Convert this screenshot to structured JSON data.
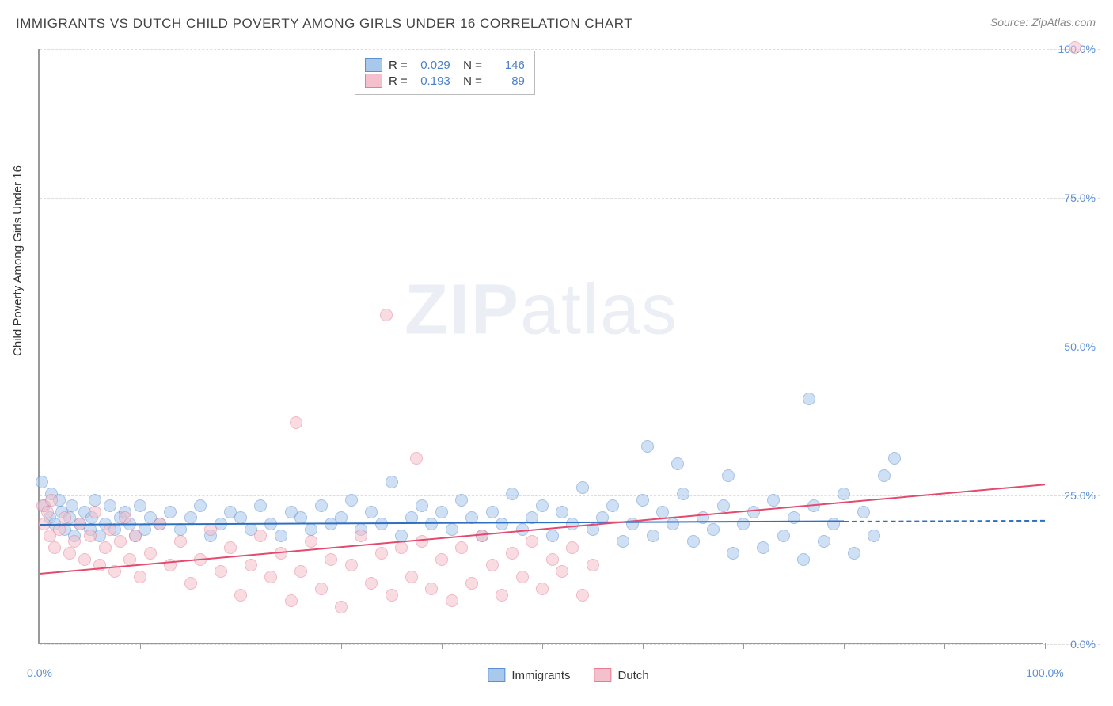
{
  "title": "IMMIGRANTS VS DUTCH CHILD POVERTY AMONG GIRLS UNDER 16 CORRELATION CHART",
  "source": "Source: ZipAtlas.com",
  "ylabel": "Child Poverty Among Girls Under 16",
  "watermark_bold": "ZIP",
  "watermark_rest": "atlas",
  "chart": {
    "type": "scatter",
    "xlim": [
      0,
      100
    ],
    "ylim": [
      0,
      100
    ],
    "grid_color": "#dddddd",
    "axis_color": "#999999",
    "background_color": "#ffffff",
    "ytick_step": 25,
    "ytick_labels": [
      "0.0%",
      "25.0%",
      "50.0%",
      "75.0%",
      "100.0%"
    ],
    "xtick_positions": [
      0,
      10,
      20,
      30,
      40,
      50,
      60,
      70,
      80,
      90,
      100
    ],
    "xtick_labels": {
      "0": "0.0%",
      "100": "100.0%"
    },
    "label_color": "#5b8fd6",
    "label_fontsize": 14,
    "marker_radius": 8,
    "marker_opacity": 0.55,
    "series": [
      {
        "name": "Immigrants",
        "color_fill": "#a8c8ec",
        "color_stroke": "#5b8fd6",
        "R": "0.029",
        "N": "146",
        "trend": {
          "y_start": 20.2,
          "y_end": 20.8,
          "x_start": 0,
          "x_end": 80,
          "dash_to": 100,
          "color": "#2f6fc0"
        },
        "points": [
          [
            0.2,
            27
          ],
          [
            0.5,
            23
          ],
          [
            1,
            21
          ],
          [
            1.2,
            25
          ],
          [
            1.5,
            20
          ],
          [
            2,
            24
          ],
          [
            2.2,
            22
          ],
          [
            2.5,
            19
          ],
          [
            3,
            21
          ],
          [
            3.2,
            23
          ],
          [
            3.5,
            18
          ],
          [
            4,
            20
          ],
          [
            4.5,
            22
          ],
          [
            5,
            19
          ],
          [
            5.2,
            21
          ],
          [
            5.5,
            24
          ],
          [
            6,
            18
          ],
          [
            6.5,
            20
          ],
          [
            7,
            23
          ],
          [
            7.5,
            19
          ],
          [
            8,
            21
          ],
          [
            8.5,
            22
          ],
          [
            9,
            20
          ],
          [
            9.5,
            18
          ],
          [
            10,
            23
          ],
          [
            10.5,
            19
          ],
          [
            11,
            21
          ],
          [
            12,
            20
          ],
          [
            13,
            22
          ],
          [
            14,
            19
          ],
          [
            15,
            21
          ],
          [
            16,
            23
          ],
          [
            17,
            18
          ],
          [
            18,
            20
          ],
          [
            19,
            22
          ],
          [
            20,
            21
          ],
          [
            21,
            19
          ],
          [
            22,
            23
          ],
          [
            23,
            20
          ],
          [
            24,
            18
          ],
          [
            25,
            22
          ],
          [
            26,
            21
          ],
          [
            27,
            19
          ],
          [
            28,
            23
          ],
          [
            29,
            20
          ],
          [
            30,
            21
          ],
          [
            31,
            24
          ],
          [
            32,
            19
          ],
          [
            33,
            22
          ],
          [
            34,
            20
          ],
          [
            35,
            27
          ],
          [
            36,
            18
          ],
          [
            37,
            21
          ],
          [
            38,
            23
          ],
          [
            39,
            20
          ],
          [
            40,
            22
          ],
          [
            41,
            19
          ],
          [
            42,
            24
          ],
          [
            43,
            21
          ],
          [
            44,
            18
          ],
          [
            45,
            22
          ],
          [
            46,
            20
          ],
          [
            47,
            25
          ],
          [
            48,
            19
          ],
          [
            49,
            21
          ],
          [
            50,
            23
          ],
          [
            51,
            18
          ],
          [
            52,
            22
          ],
          [
            53,
            20
          ],
          [
            54,
            26
          ],
          [
            55,
            19
          ],
          [
            56,
            21
          ],
          [
            57,
            23
          ],
          [
            58,
            17
          ],
          [
            59,
            20
          ],
          [
            60,
            24
          ],
          [
            60.5,
            33
          ],
          [
            61,
            18
          ],
          [
            62,
            22
          ],
          [
            63,
            20
          ],
          [
            63.5,
            30
          ],
          [
            64,
            25
          ],
          [
            65,
            17
          ],
          [
            66,
            21
          ],
          [
            67,
            19
          ],
          [
            68,
            23
          ],
          [
            68.5,
            28
          ],
          [
            69,
            15
          ],
          [
            70,
            20
          ],
          [
            71,
            22
          ],
          [
            72,
            16
          ],
          [
            73,
            24
          ],
          [
            74,
            18
          ],
          [
            75,
            21
          ],
          [
            76,
            14
          ],
          [
            76.5,
            41
          ],
          [
            77,
            23
          ],
          [
            78,
            17
          ],
          [
            79,
            20
          ],
          [
            80,
            25
          ],
          [
            81,
            15
          ],
          [
            82,
            22
          ],
          [
            83,
            18
          ],
          [
            84,
            28
          ],
          [
            85,
            31
          ]
        ]
      },
      {
        "name": "Dutch",
        "color_fill": "#f4c0cb",
        "color_stroke": "#e87c95",
        "R": "0.193",
        "N": "89",
        "trend": {
          "y_start": 12,
          "y_end": 27,
          "x_start": 0,
          "x_end": 100,
          "color": "#e24a6e"
        },
        "points": [
          [
            0.3,
            23
          ],
          [
            0.5,
            20
          ],
          [
            0.8,
            22
          ],
          [
            1,
            18
          ],
          [
            1.2,
            24
          ],
          [
            1.5,
            16
          ],
          [
            2,
            19
          ],
          [
            2.5,
            21
          ],
          [
            3,
            15
          ],
          [
            3.5,
            17
          ],
          [
            4,
            20
          ],
          [
            4.5,
            14
          ],
          [
            5,
            18
          ],
          [
            5.5,
            22
          ],
          [
            6,
            13
          ],
          [
            6.5,
            16
          ],
          [
            7,
            19
          ],
          [
            7.5,
            12
          ],
          [
            8,
            17
          ],
          [
            8.5,
            21
          ],
          [
            9,
            14
          ],
          [
            9.5,
            18
          ],
          [
            10,
            11
          ],
          [
            11,
            15
          ],
          [
            12,
            20
          ],
          [
            13,
            13
          ],
          [
            14,
            17
          ],
          [
            15,
            10
          ],
          [
            16,
            14
          ],
          [
            17,
            19
          ],
          [
            18,
            12
          ],
          [
            19,
            16
          ],
          [
            20,
            8
          ],
          [
            21,
            13
          ],
          [
            22,
            18
          ],
          [
            23,
            11
          ],
          [
            24,
            15
          ],
          [
            25,
            7
          ],
          [
            25.5,
            37
          ],
          [
            26,
            12
          ],
          [
            27,
            17
          ],
          [
            28,
            9
          ],
          [
            29,
            14
          ],
          [
            30,
            6
          ],
          [
            31,
            13
          ],
          [
            32,
            18
          ],
          [
            33,
            10
          ],
          [
            34,
            15
          ],
          [
            34.5,
            55
          ],
          [
            35,
            8
          ],
          [
            36,
            16
          ],
          [
            37,
            11
          ],
          [
            37.5,
            31
          ],
          [
            38,
            17
          ],
          [
            39,
            9
          ],
          [
            40,
            14
          ],
          [
            41,
            7
          ],
          [
            42,
            16
          ],
          [
            43,
            10
          ],
          [
            44,
            18
          ],
          [
            45,
            13
          ],
          [
            46,
            8
          ],
          [
            47,
            15
          ],
          [
            48,
            11
          ],
          [
            49,
            17
          ],
          [
            50,
            9
          ],
          [
            51,
            14
          ],
          [
            52,
            12
          ],
          [
            53,
            16
          ],
          [
            54,
            8
          ],
          [
            55,
            13
          ],
          [
            103,
            100
          ]
        ]
      }
    ]
  },
  "bottom_legend": [
    {
      "label": "Immigrants",
      "fill": "#a8c8ec",
      "stroke": "#5b8fd6"
    },
    {
      "label": "Dutch",
      "fill": "#f4c0cb",
      "stroke": "#e87c95"
    }
  ]
}
